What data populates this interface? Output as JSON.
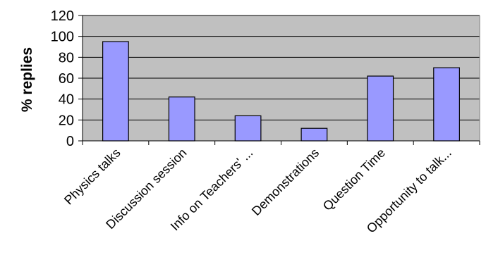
{
  "chart_data": {
    "type": "bar",
    "categories": [
      "Physics talks",
      "Discussion session",
      "Info on Teachers' ...",
      "Demonstrations",
      "Question Time",
      "Opportunity to talk..."
    ],
    "values": [
      95,
      42,
      24,
      12,
      62,
      70
    ],
    "ylabel": "% replies",
    "xlabel": "",
    "ylim": [
      0,
      120
    ],
    "yticks": [
      0,
      20,
      40,
      60,
      80,
      100,
      120
    ],
    "grid": true,
    "legend": "none",
    "colors": {
      "plot_background": "#c0c0c0",
      "bar_fill": "#9999ff",
      "bar_stroke": "#000000",
      "gridline": "#000000"
    }
  }
}
